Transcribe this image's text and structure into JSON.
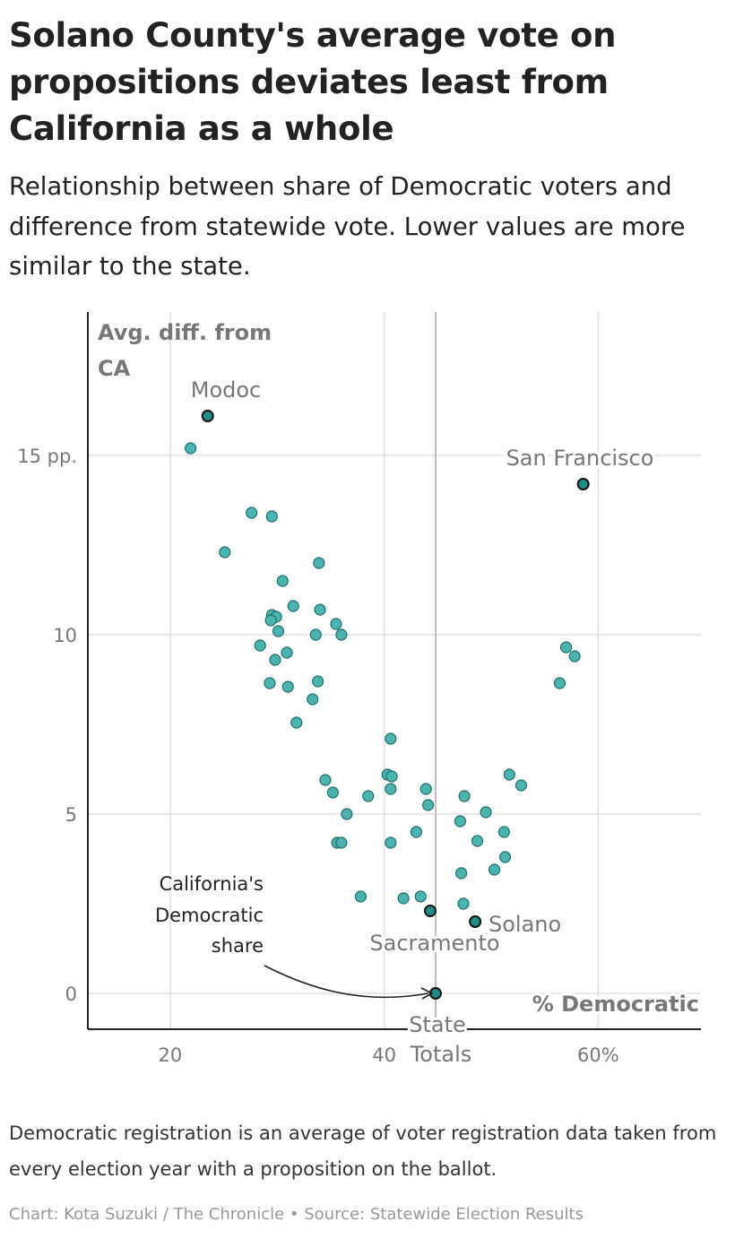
{
  "title": "Solano County's average vote on propositions deviates least from California as a whole",
  "subtitle": "Relationship between share of Democratic voters and difference from statewide vote. Lower values are more similar to the state.",
  "note": "Democratic registration is an average of voter registration data taken from every election year with a proposition on the ballot.",
  "credit": "Chart: Kota Suzuki / The Chronicle • Source: Statewide Election Results",
  "colors": {
    "point": "#4bb3b0",
    "highlight": "#1f8d89"
  },
  "chart_data": {
    "type": "scatter",
    "xlabel": "% Democratic",
    "ylabel": "Avg. diff. from CA",
    "xlim": [
      12.3,
      69.6
    ],
    "ylim": [
      -1.0,
      19.0
    ],
    "x_ticks": [
      {
        "value": 20,
        "label": "20"
      },
      {
        "value": 40,
        "label": "40"
      },
      {
        "value": 60,
        "label": "60%"
      }
    ],
    "y_ticks": [
      {
        "value": 0,
        "label": "0"
      },
      {
        "value": 5,
        "label": "5"
      },
      {
        "value": 10,
        "label": "10"
      },
      {
        "value": 15,
        "label": "15 pp."
      }
    ],
    "grid": true,
    "reference_line_x": 44.8,
    "highlighted": [
      {
        "label": "Modoc",
        "x": 23.5,
        "y": 16.1
      },
      {
        "label": "San Francisco",
        "x": 58.6,
        "y": 14.2
      },
      {
        "label": "Sacramento",
        "x": 44.3,
        "y": 2.3
      },
      {
        "label": "Solano",
        "x": 48.5,
        "y": 2.0
      },
      {
        "label": "State Totals",
        "x": 44.8,
        "y": 0.0
      }
    ],
    "annotation": "California's Democratic share",
    "points": [
      [
        21.9,
        15.2
      ],
      [
        27.6,
        13.4
      ],
      [
        29.5,
        13.3
      ],
      [
        25.1,
        12.3
      ],
      [
        33.9,
        12.0
      ],
      [
        30.5,
        11.5
      ],
      [
        29.5,
        10.55
      ],
      [
        29.9,
        10.5
      ],
      [
        29.4,
        10.4
      ],
      [
        31.5,
        10.8
      ],
      [
        34.0,
        10.7
      ],
      [
        35.5,
        10.3
      ],
      [
        30.1,
        10.1
      ],
      [
        33.6,
        10.0
      ],
      [
        36.0,
        10.0
      ],
      [
        28.4,
        9.7
      ],
      [
        30.9,
        9.5
      ],
      [
        29.8,
        9.3
      ],
      [
        33.8,
        8.7
      ],
      [
        29.3,
        8.65
      ],
      [
        31.0,
        8.55
      ],
      [
        33.3,
        8.2
      ],
      [
        31.8,
        7.55
      ],
      [
        40.6,
        7.1
      ],
      [
        40.3,
        6.1
      ],
      [
        40.7,
        6.05
      ],
      [
        34.5,
        5.95
      ],
      [
        40.6,
        5.7
      ],
      [
        35.2,
        5.6
      ],
      [
        38.5,
        5.5
      ],
      [
        43.9,
        5.7
      ],
      [
        47.5,
        5.5
      ],
      [
        44.1,
        5.25
      ],
      [
        36.5,
        5.0
      ],
      [
        49.5,
        5.05
      ],
      [
        47.1,
        4.8
      ],
      [
        51.7,
        6.1
      ],
      [
        52.8,
        5.8
      ],
      [
        51.2,
        4.5
      ],
      [
        43.0,
        4.5
      ],
      [
        48.7,
        4.25
      ],
      [
        35.6,
        4.2
      ],
      [
        36.0,
        4.2
      ],
      [
        40.6,
        4.2
      ],
      [
        51.3,
        3.8
      ],
      [
        50.3,
        3.45
      ],
      [
        47.2,
        3.35
      ],
      [
        37.8,
        2.7
      ],
      [
        41.8,
        2.65
      ],
      [
        43.4,
        2.7
      ],
      [
        47.4,
        2.5
      ],
      [
        57.0,
        9.65
      ],
      [
        57.8,
        9.4
      ],
      [
        56.4,
        8.65
      ]
    ]
  }
}
